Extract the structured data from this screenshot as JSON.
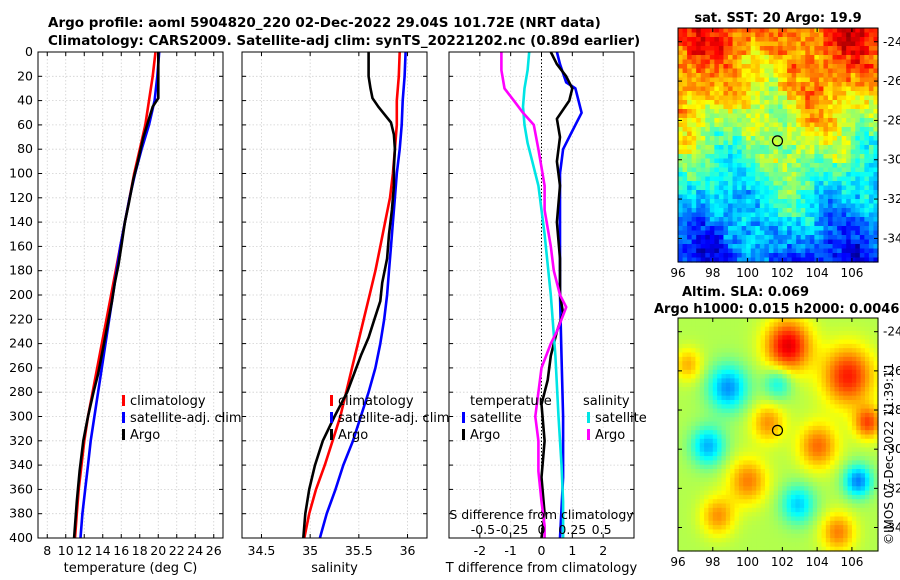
{
  "header": {
    "line1": "Argo profile: aoml 5904820_220 02-Dec-2022 29.04S 101.72E (NRT data)",
    "line2": "Climatology: CARS2009. Satellite-adj clim: synTS_20221202.nc (0.89d earlier)"
  },
  "colors": {
    "climatology": "#ff0000",
    "satellite": "#0000ff",
    "argo": "#000000",
    "sat_salinity": "#00e5e5",
    "argo_salinity": "#ff00ff"
  },
  "chart_data": [
    {
      "id": "temperature",
      "type": "line",
      "xlabel": "temperature (deg C)",
      "ylabel": "",
      "xlim": [
        7,
        27
      ],
      "ylim": [
        400,
        0
      ],
      "xticks": [
        8,
        10,
        12,
        14,
        16,
        18,
        20,
        22,
        24,
        26
      ],
      "yticks": [
        0,
        20,
        40,
        60,
        80,
        100,
        120,
        140,
        160,
        180,
        200,
        220,
        240,
        260,
        280,
        300,
        320,
        340,
        360,
        380,
        400
      ],
      "legend": [
        "climatology",
        "satellite-adj. clim",
        "Argo"
      ],
      "series": [
        {
          "name": "climatology",
          "points": [
            [
              19.7,
              0
            ],
            [
              19.4,
              20
            ],
            [
              19.0,
              40
            ],
            [
              18.6,
              60
            ],
            [
              18.0,
              80
            ],
            [
              17.4,
              100
            ],
            [
              16.9,
              120
            ],
            [
              16.4,
              140
            ],
            [
              15.9,
              160
            ],
            [
              15.4,
              180
            ],
            [
              14.9,
              200
            ],
            [
              14.4,
              220
            ],
            [
              13.9,
              240
            ],
            [
              13.4,
              260
            ],
            [
              12.9,
              280
            ],
            [
              12.4,
              300
            ],
            [
              12.0,
              320
            ],
            [
              11.7,
              340
            ],
            [
              11.4,
              360
            ],
            [
              11.2,
              380
            ],
            [
              11.0,
              400
            ]
          ]
        },
        {
          "name": "satellite-adj. clim",
          "points": [
            [
              20.1,
              0
            ],
            [
              19.9,
              20
            ],
            [
              19.6,
              40
            ],
            [
              19.0,
              60
            ],
            [
              18.2,
              80
            ],
            [
              17.5,
              100
            ],
            [
              16.9,
              120
            ],
            [
              16.4,
              140
            ],
            [
              15.9,
              160
            ],
            [
              15.5,
              180
            ],
            [
              15.1,
              200
            ],
            [
              14.7,
              220
            ],
            [
              14.3,
              240
            ],
            [
              13.9,
              260
            ],
            [
              13.5,
              280
            ],
            [
              13.1,
              300
            ],
            [
              12.7,
              320
            ],
            [
              12.4,
              340
            ],
            [
              12.1,
              360
            ],
            [
              11.8,
              380
            ],
            [
              11.6,
              400
            ]
          ]
        },
        {
          "name": "Argo",
          "points": [
            [
              20.0,
              0
            ],
            [
              20.0,
              20
            ],
            [
              20.0,
              38
            ],
            [
              19.4,
              45
            ],
            [
              19.0,
              55
            ],
            [
              18.4,
              70
            ],
            [
              17.8,
              90
            ],
            [
              17.3,
              105
            ],
            [
              16.8,
              125
            ],
            [
              16.4,
              140
            ],
            [
              16.0,
              160
            ],
            [
              15.7,
              175
            ],
            [
              15.3,
              190
            ],
            [
              15.0,
              205
            ],
            [
              14.5,
              225
            ],
            [
              14.0,
              245
            ],
            [
              13.5,
              265
            ],
            [
              13.0,
              280
            ],
            [
              12.4,
              300
            ],
            [
              11.9,
              320
            ],
            [
              11.5,
              345
            ],
            [
              11.2,
              370
            ],
            [
              11.0,
              390
            ],
            [
              10.9,
              400
            ]
          ]
        }
      ]
    },
    {
      "id": "salinity",
      "type": "line",
      "xlabel": "salinity",
      "ylabel": "",
      "xlim": [
        34.3,
        36.2
      ],
      "ylim": [
        400,
        0
      ],
      "xticks": [
        34.5,
        35,
        35.5,
        36
      ],
      "xtick_labels": [
        "34.5",
        "35",
        "35.5",
        "36"
      ],
      "yticks": [
        0,
        20,
        40,
        60,
        80,
        100,
        120,
        140,
        160,
        180,
        200,
        220,
        240,
        260,
        280,
        300,
        320,
        340,
        360,
        380,
        400
      ],
      "legend": [
        "climatology",
        "satellite-adj. clim",
        "Argo"
      ],
      "series": [
        {
          "name": "climatology",
          "points": [
            [
              35.92,
              0
            ],
            [
              35.91,
              20
            ],
            [
              35.89,
              40
            ],
            [
              35.89,
              60
            ],
            [
              35.87,
              80
            ],
            [
              35.85,
              100
            ],
            [
              35.82,
              120
            ],
            [
              35.77,
              140
            ],
            [
              35.72,
              160
            ],
            [
              35.67,
              180
            ],
            [
              35.61,
              200
            ],
            [
              35.55,
              220
            ],
            [
              35.49,
              240
            ],
            [
              35.43,
              260
            ],
            [
              35.37,
              280
            ],
            [
              35.31,
              300
            ],
            [
              35.23,
              320
            ],
            [
              35.15,
              340
            ],
            [
              35.06,
              360
            ],
            [
              34.99,
              380
            ],
            [
              34.94,
              400
            ]
          ]
        },
        {
          "name": "satellite-adj. clim",
          "points": [
            [
              35.98,
              0
            ],
            [
              35.97,
              20
            ],
            [
              35.95,
              40
            ],
            [
              35.94,
              60
            ],
            [
              35.92,
              80
            ],
            [
              35.89,
              100
            ],
            [
              35.87,
              120
            ],
            [
              35.85,
              140
            ],
            [
              35.83,
              160
            ],
            [
              35.81,
              180
            ],
            [
              35.79,
              200
            ],
            [
              35.76,
              220
            ],
            [
              35.72,
              240
            ],
            [
              35.67,
              260
            ],
            [
              35.6,
              280
            ],
            [
              35.52,
              300
            ],
            [
              35.44,
              320
            ],
            [
              35.34,
              340
            ],
            [
              35.26,
              360
            ],
            [
              35.17,
              380
            ],
            [
              35.1,
              400
            ]
          ]
        },
        {
          "name": "Argo",
          "points": [
            [
              35.6,
              0
            ],
            [
              35.6,
              20
            ],
            [
              35.62,
              30
            ],
            [
              35.64,
              38
            ],
            [
              35.7,
              45
            ],
            [
              35.75,
              50
            ],
            [
              35.83,
              58
            ],
            [
              35.86,
              68
            ],
            [
              35.87,
              80
            ],
            [
              35.86,
              95
            ],
            [
              35.86,
              110
            ],
            [
              35.84,
              130
            ],
            [
              35.81,
              150
            ],
            [
              35.79,
              170
            ],
            [
              35.74,
              190
            ],
            [
              35.72,
              205
            ],
            [
              35.66,
              220
            ],
            [
              35.6,
              235
            ],
            [
              35.52,
              250
            ],
            [
              35.45,
              265
            ],
            [
              35.38,
              280
            ],
            [
              35.25,
              300
            ],
            [
              35.13,
              320
            ],
            [
              35.05,
              340
            ],
            [
              34.99,
              360
            ],
            [
              34.95,
              380
            ],
            [
              34.93,
              400
            ]
          ]
        }
      ]
    },
    {
      "id": "difference",
      "type": "line",
      "xlabel": "T difference from climatology",
      "top_xlabel": "S difference from climatology",
      "xlim": [
        -3,
        3
      ],
      "ylim": [
        400,
        0
      ],
      "xticks": [
        -2,
        -1,
        0,
        1,
        2
      ],
      "xtick_labels": [
        "-2",
        "-1",
        "0",
        "1",
        "2"
      ],
      "s_ticks": [
        "-0.5",
        "-0.25",
        "0",
        "0.25",
        "0.5"
      ],
      "yticks": [
        0,
        20,
        40,
        60,
        80,
        100,
        120,
        140,
        160,
        180,
        200,
        220,
        240,
        260,
        280,
        300,
        320,
        340,
        360,
        380,
        400
      ],
      "legend_headers": [
        "temperature",
        "salinity"
      ],
      "legend": [
        "satellite",
        "Argo",
        "satellite",
        "Argo"
      ],
      "series": [
        {
          "name": "temperature satellite",
          "points": [
            [
              0.5,
              0
            ],
            [
              0.6,
              10
            ],
            [
              0.8,
              25
            ],
            [
              1.1,
              30
            ],
            [
              1.2,
              40
            ],
            [
              1.3,
              50
            ],
            [
              1.0,
              65
            ],
            [
              0.7,
              80
            ],
            [
              0.6,
              100
            ],
            [
              0.6,
              140
            ],
            [
              0.6,
              200
            ],
            [
              0.65,
              250
            ],
            [
              0.7,
              300
            ],
            [
              0.7,
              350
            ],
            [
              0.6,
              400
            ]
          ]
        },
        {
          "name": "temperature Argo",
          "points": [
            [
              0.3,
              0
            ],
            [
              0.5,
              10
            ],
            [
              0.8,
              20
            ],
            [
              1.0,
              30
            ],
            [
              0.9,
              40
            ],
            [
              0.5,
              55
            ],
            [
              0.6,
              70
            ],
            [
              0.5,
              90
            ],
            [
              0.6,
              110
            ],
            [
              0.5,
              140
            ],
            [
              0.6,
              170
            ],
            [
              0.6,
              200
            ],
            [
              0.7,
              215
            ],
            [
              0.5,
              230
            ],
            [
              0.3,
              250
            ],
            [
              0.2,
              270
            ],
            [
              0.0,
              290
            ],
            [
              0.1,
              320
            ],
            [
              0.0,
              350
            ],
            [
              0.1,
              380
            ],
            [
              0.0,
              400
            ]
          ]
        },
        {
          "name": "salinity satellite",
          "points": [
            [
              -0.4,
              0
            ],
            [
              -0.45,
              15
            ],
            [
              -0.55,
              30
            ],
            [
              -0.6,
              45
            ],
            [
              -0.55,
              60
            ],
            [
              -0.45,
              75
            ],
            [
              -0.3,
              90
            ],
            [
              -0.1,
              110
            ],
            [
              0.1,
              150
            ],
            [
              0.3,
              200
            ],
            [
              0.45,
              250
            ],
            [
              0.55,
              300
            ],
            [
              0.65,
              340
            ],
            [
              0.7,
              370
            ],
            [
              0.7,
              400
            ]
          ]
        },
        {
          "name": "salinity Argo",
          "points": [
            [
              -1.3,
              0
            ],
            [
              -1.3,
              15
            ],
            [
              -1.2,
              30
            ],
            [
              -0.9,
              40
            ],
            [
              -0.6,
              50
            ],
            [
              -0.25,
              60
            ],
            [
              -0.1,
              80
            ],
            [
              0.0,
              95
            ],
            [
              0.1,
              110
            ],
            [
              0.1,
              130
            ],
            [
              0.3,
              160
            ],
            [
              0.4,
              180
            ],
            [
              0.6,
              200
            ],
            [
              0.8,
              210
            ],
            [
              0.5,
              230
            ],
            [
              0.3,
              240
            ],
            [
              0.0,
              260
            ],
            [
              -0.1,
              280
            ],
            [
              -0.2,
              300
            ],
            [
              -0.1,
              320
            ],
            [
              -0.1,
              345
            ],
            [
              0.0,
              370
            ],
            [
              0.1,
              390
            ],
            [
              0.1,
              400
            ]
          ]
        }
      ]
    },
    {
      "id": "sst_map",
      "type": "heatmap",
      "title": "sat. SST: 20 Argo: 19.9",
      "xlim": [
        96,
        107.5
      ],
      "ylim": [
        -35.2,
        -23.3
      ],
      "xticks": [
        96,
        98,
        100,
        102,
        104,
        106
      ],
      "xtick_labels": [
        "96",
        "98",
        "100",
        "102",
        "104",
        "106"
      ],
      "yticks": [
        -24,
        -26,
        -28,
        -30,
        -32,
        -34
      ],
      "ytick_labels": [
        "-24",
        "-26",
        "-28",
        "-30",
        "-32",
        "-34"
      ],
      "marker": [
        101.72,
        -29.04
      ]
    },
    {
      "id": "sla_map",
      "type": "heatmap",
      "title_line1": "Altim. SLA: 0.069",
      "title_line2": "Argo h1000: 0.015 h2000: 0.0046",
      "xlim": [
        96,
        107.5
      ],
      "ylim": [
        -35.2,
        -23.3
      ],
      "xticks": [
        96,
        98,
        100,
        102,
        104,
        106
      ],
      "xtick_labels": [
        "96",
        "98",
        "100",
        "102",
        "104",
        "106"
      ],
      "yticks": [
        -24,
        -26,
        -28,
        -30,
        -32,
        -34
      ],
      "ytick_labels": [
        "-24",
        "-26",
        "-28",
        "-30",
        "-32",
        "-34"
      ],
      "marker": [
        101.72,
        -29.04
      ]
    }
  ],
  "credit": "©IMOS 07-Dec-2022 11:39:11"
}
